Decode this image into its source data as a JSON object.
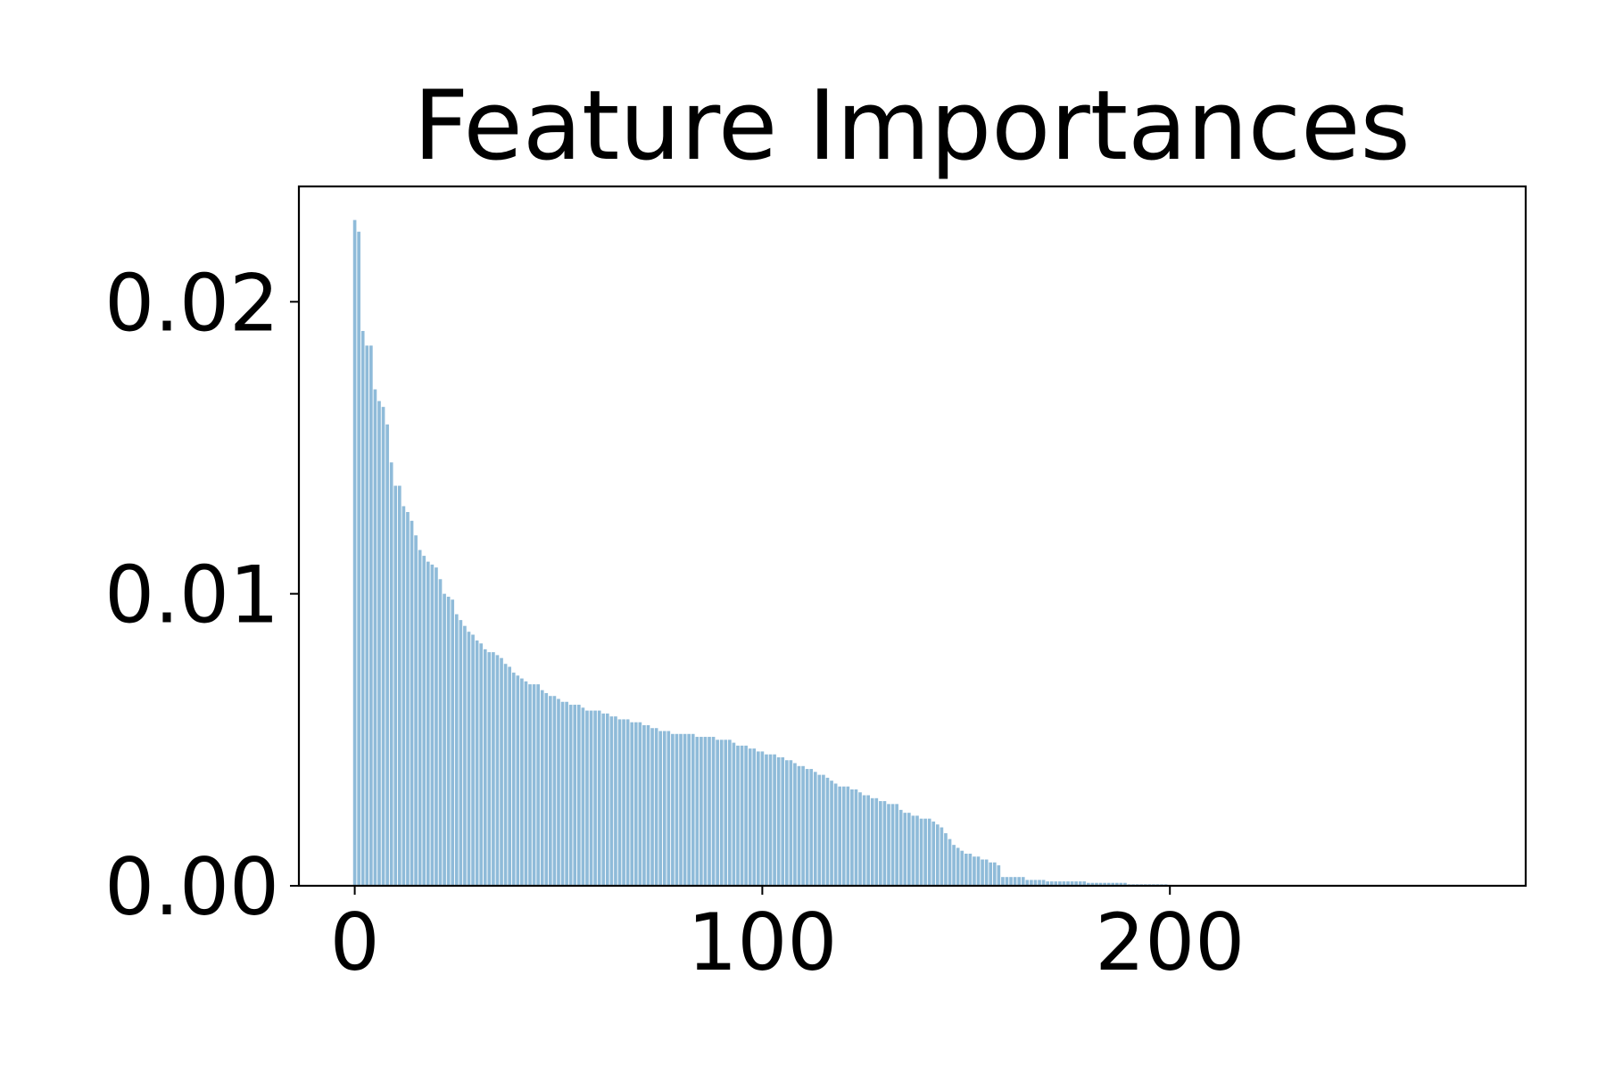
{
  "chart_data": {
    "type": "bar",
    "title": "Feature Importances",
    "color": "#8fbbd9",
    "xlim": [
      -13.7,
      287.3
    ],
    "xticks": [
      0,
      100,
      200
    ],
    "ylim": [
      0,
      0.02395
    ],
    "yticks": [
      {
        "value": 0,
        "label": "0.00"
      },
      0.01,
      0.02
    ],
    "x": [
      0,
      1,
      2,
      3,
      4,
      5,
      6,
      7,
      8,
      9,
      10,
      11,
      12,
      13,
      14,
      15,
      16,
      17,
      18,
      19,
      20,
      21,
      22,
      23,
      24,
      25,
      26,
      27,
      28,
      29,
      30,
      31,
      32,
      33,
      34,
      35,
      36,
      37,
      38,
      39,
      40,
      41,
      42,
      43,
      44,
      45,
      46,
      47,
      48,
      49,
      50,
      51,
      52,
      53,
      54,
      55,
      56,
      57,
      58,
      59,
      60,
      61,
      62,
      63,
      64,
      65,
      66,
      67,
      68,
      69,
      70,
      71,
      72,
      73,
      74,
      75,
      76,
      77,
      78,
      79,
      80,
      81,
      82,
      83,
      84,
      85,
      86,
      87,
      88,
      89,
      90,
      91,
      92,
      93,
      94,
      95,
      96,
      97,
      98,
      99,
      100,
      101,
      102,
      103,
      104,
      105,
      106,
      107,
      108,
      109,
      110,
      111,
      112,
      113,
      114,
      115,
      116,
      117,
      118,
      119,
      120,
      121,
      122,
      123,
      124,
      125,
      126,
      127,
      128,
      129,
      130,
      131,
      132,
      133,
      134,
      135,
      136,
      137,
      138,
      139,
      140,
      141,
      142,
      143,
      144,
      145,
      146,
      147,
      148,
      149,
      150,
      151,
      152,
      153,
      154,
      155,
      156,
      157,
      158,
      159,
      160,
      161,
      162,
      163,
      164,
      165,
      166,
      167,
      168,
      169,
      170,
      171,
      172,
      173,
      174,
      175,
      176,
      177,
      178,
      179,
      180,
      181,
      182,
      183,
      184,
      185,
      186,
      187,
      188,
      189,
      190,
      191,
      192,
      193,
      194,
      195,
      196,
      197,
      198,
      199,
      200,
      201,
      202,
      203,
      204,
      205,
      206,
      207,
      208,
      209,
      210,
      211,
      212,
      213,
      214,
      215,
      216,
      217,
      218,
      219,
      220,
      221,
      222,
      223,
      224,
      225,
      226,
      227,
      228,
      229,
      230,
      231,
      232,
      233,
      234,
      235,
      236,
      237,
      238,
      239,
      240,
      241,
      242,
      243,
      244,
      245,
      246,
      247,
      248,
      249,
      250,
      251,
      252,
      253,
      254,
      255,
      256,
      257,
      258,
      259,
      260,
      261,
      262,
      263,
      264,
      265,
      266,
      267,
      268,
      269,
      270,
      271,
      272
    ],
    "values": [
      0.0228,
      0.0224,
      0.019,
      0.0185,
      0.0185,
      0.017,
      0.0166,
      0.0164,
      0.0158,
      0.0145,
      0.0137,
      0.0137,
      0.013,
      0.0128,
      0.0125,
      0.012,
      0.0115,
      0.0113,
      0.0111,
      0.011,
      0.0109,
      0.0105,
      0.01,
      0.0099,
      0.0098,
      0.0093,
      0.0091,
      0.0089,
      0.0087,
      0.0086,
      0.0084,
      0.0083,
      0.0081,
      0.008,
      0.008,
      0.0079,
      0.0078,
      0.0076,
      0.0075,
      0.0073,
      0.0072,
      0.0071,
      0.007,
      0.0069,
      0.0069,
      0.0069,
      0.0067,
      0.0066,
      0.0065,
      0.0065,
      0.0064,
      0.0063,
      0.0063,
      0.0062,
      0.0062,
      0.0062,
      0.0061,
      0.006,
      0.006,
      0.006,
      0.006,
      0.0059,
      0.0059,
      0.0058,
      0.0058,
      0.0057,
      0.0057,
      0.0057,
      0.0056,
      0.0056,
      0.0056,
      0.0055,
      0.0055,
      0.0054,
      0.0054,
      0.0053,
      0.0053,
      0.0053,
      0.0052,
      0.0052,
      0.0052,
      0.0052,
      0.0052,
      0.0052,
      0.0051,
      0.0051,
      0.0051,
      0.0051,
      0.0051,
      0.005,
      0.005,
      0.005,
      0.005,
      0.0049,
      0.0048,
      0.0048,
      0.0048,
      0.0047,
      0.0047,
      0.0046,
      0.0046,
      0.0045,
      0.0045,
      0.0045,
      0.0044,
      0.0044,
      0.0043,
      0.0043,
      0.0042,
      0.0041,
      0.0041,
      0.004,
      0.004,
      0.0039,
      0.0038,
      0.0038,
      0.0037,
      0.0036,
      0.0035,
      0.0034,
      0.0034,
      0.0034,
      0.0033,
      0.0033,
      0.0032,
      0.0031,
      0.0031,
      0.003,
      0.003,
      0.0029,
      0.0029,
      0.0028,
      0.0028,
      0.0028,
      0.0026,
      0.0025,
      0.0025,
      0.0024,
      0.0024,
      0.0023,
      0.0023,
      0.0023,
      0.0022,
      0.0021,
      0.002,
      0.0018,
      0.0016,
      0.0014,
      0.0013,
      0.0012,
      0.0011,
      0.0011,
      0.001,
      0.001,
      0.0009,
      0.0009,
      0.0008,
      0.0008,
      0.0007,
      0.0003,
      0.0003,
      0.0003,
      0.0003,
      0.0003,
      0.0003,
      0.0002,
      0.0002,
      0.0002,
      0.0002,
      0.0002,
      0.00015,
      0.00015,
      0.00015,
      0.00015,
      0.00015,
      0.00015,
      0.00015,
      0.00015,
      0.00015,
      0.00015,
      0.0001,
      0.0001,
      0.0001,
      0.0001,
      0.0001,
      0.0001,
      0.0001,
      0.0001,
      0.0001,
      0.0001,
      5e-05,
      5e-05,
      5e-05,
      5e-05,
      5e-05,
      5e-05,
      5e-05,
      5e-05,
      5e-05,
      5e-05,
      2e-05,
      2e-05,
      2e-05,
      2e-05,
      2e-05,
      2e-05,
      2e-05,
      2e-05,
      2e-05,
      2e-05,
      0,
      0,
      0,
      0,
      0,
      0,
      0,
      0,
      0,
      0,
      0,
      0,
      0,
      0,
      0,
      0,
      0,
      0,
      0,
      0,
      0,
      0,
      0,
      0,
      0,
      0,
      0,
      0,
      0,
      0,
      0,
      0,
      0,
      0,
      0,
      0,
      0,
      0,
      0,
      0,
      0,
      0,
      0,
      0,
      0,
      0,
      0,
      0,
      0,
      0,
      0,
      0,
      0,
      0,
      0,
      0,
      0,
      0,
      0,
      0,
      0,
      0,
      0
    ]
  }
}
